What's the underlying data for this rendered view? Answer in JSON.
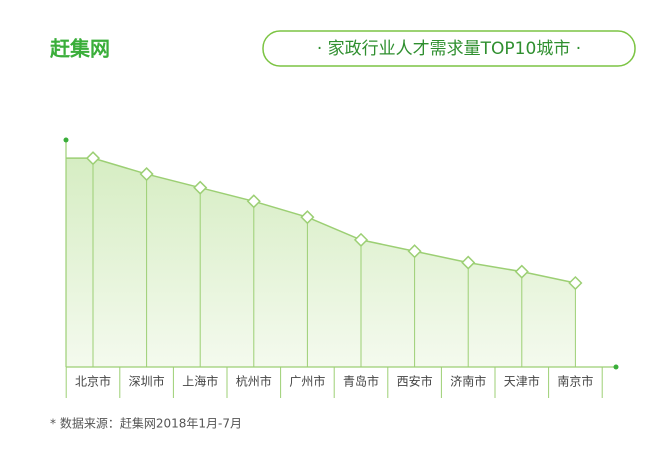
{
  "brand": "赶集网",
  "source": "* 数据来源：赶集网2018年1月-7月",
  "chart_data": {
    "type": "area-line",
    "title": "· 家政行业人才需求量TOP10城市 ·",
    "categories": [
      "北京市",
      "深圳市",
      "上海市",
      "杭州市",
      "广州市",
      "青岛市",
      "西安市",
      "济南市",
      "天津市",
      "南京市"
    ],
    "values": [
      92,
      85,
      79,
      73,
      66,
      56,
      51,
      46,
      42,
      37
    ],
    "ylim": [
      0,
      100
    ],
    "color": "#7cc443"
  }
}
